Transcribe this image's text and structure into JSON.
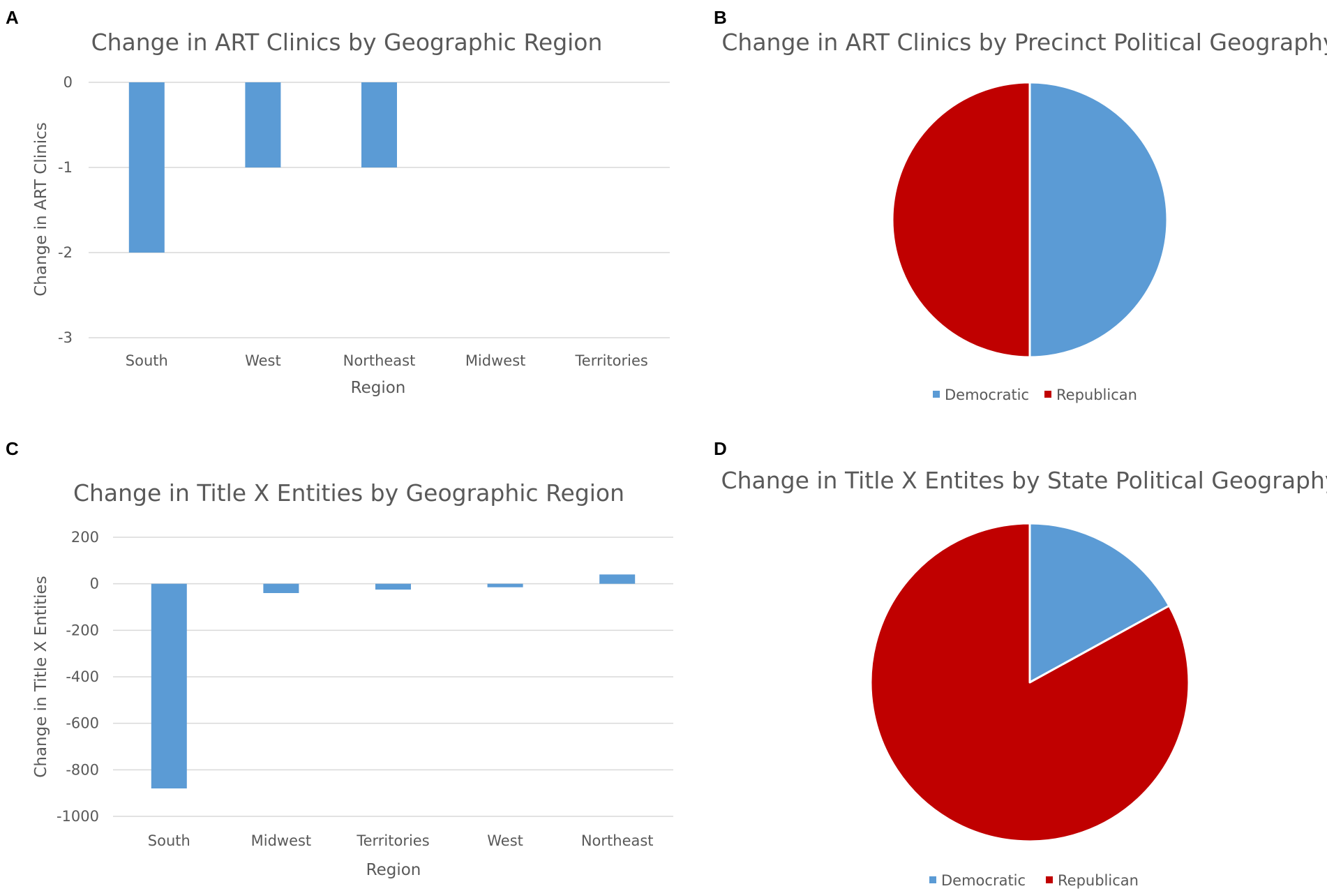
{
  "panels": {
    "a": {
      "letter": "A"
    },
    "b": {
      "letter": "B"
    },
    "c": {
      "letter": "C"
    },
    "d": {
      "letter": "D"
    }
  },
  "chart_data": [
    {
      "type": "bar",
      "title": "Change in ART Clinics by Geographic Region",
      "xlabel": "Region",
      "ylabel": "Change in ART Clinics",
      "categories": [
        "South",
        "West",
        "Northeast",
        "Midwest",
        "Territories"
      ],
      "values": [
        -2,
        -1,
        -1,
        0,
        0
      ],
      "ylim": [
        -3,
        0
      ],
      "yticks": [
        0,
        -1,
        -2,
        -3
      ],
      "grid": true,
      "bar_color": "#5b9bd5"
    },
    {
      "type": "pie",
      "title": "Change in ART Clinics by Precinct Political Geography",
      "labels": [
        "Democratic",
        "Republican"
      ],
      "values": [
        50,
        50
      ],
      "colors": [
        "#5b9bd5",
        "#c00000"
      ],
      "legend": "bottom"
    },
    {
      "type": "bar",
      "title": "Change in Title X Entities by Geographic Region",
      "xlabel": "Region",
      "ylabel": "Change in Title X Entities",
      "categories": [
        "South",
        "Midwest",
        "Territories",
        "West",
        "Northeast"
      ],
      "values": [
        -880,
        -40,
        -25,
        -15,
        40
      ],
      "ylim": [
        -1000,
        200
      ],
      "yticks": [
        200,
        0,
        -200,
        -400,
        -600,
        -800,
        -1000
      ],
      "grid": true,
      "bar_color": "#5b9bd5"
    },
    {
      "type": "pie",
      "title": "Change in Title X Entites by State Political Geography",
      "labels": [
        "Democratic",
        "Republican"
      ],
      "values": [
        17,
        83
      ],
      "colors": [
        "#5b9bd5",
        "#c00000"
      ],
      "legend": "bottom"
    }
  ]
}
